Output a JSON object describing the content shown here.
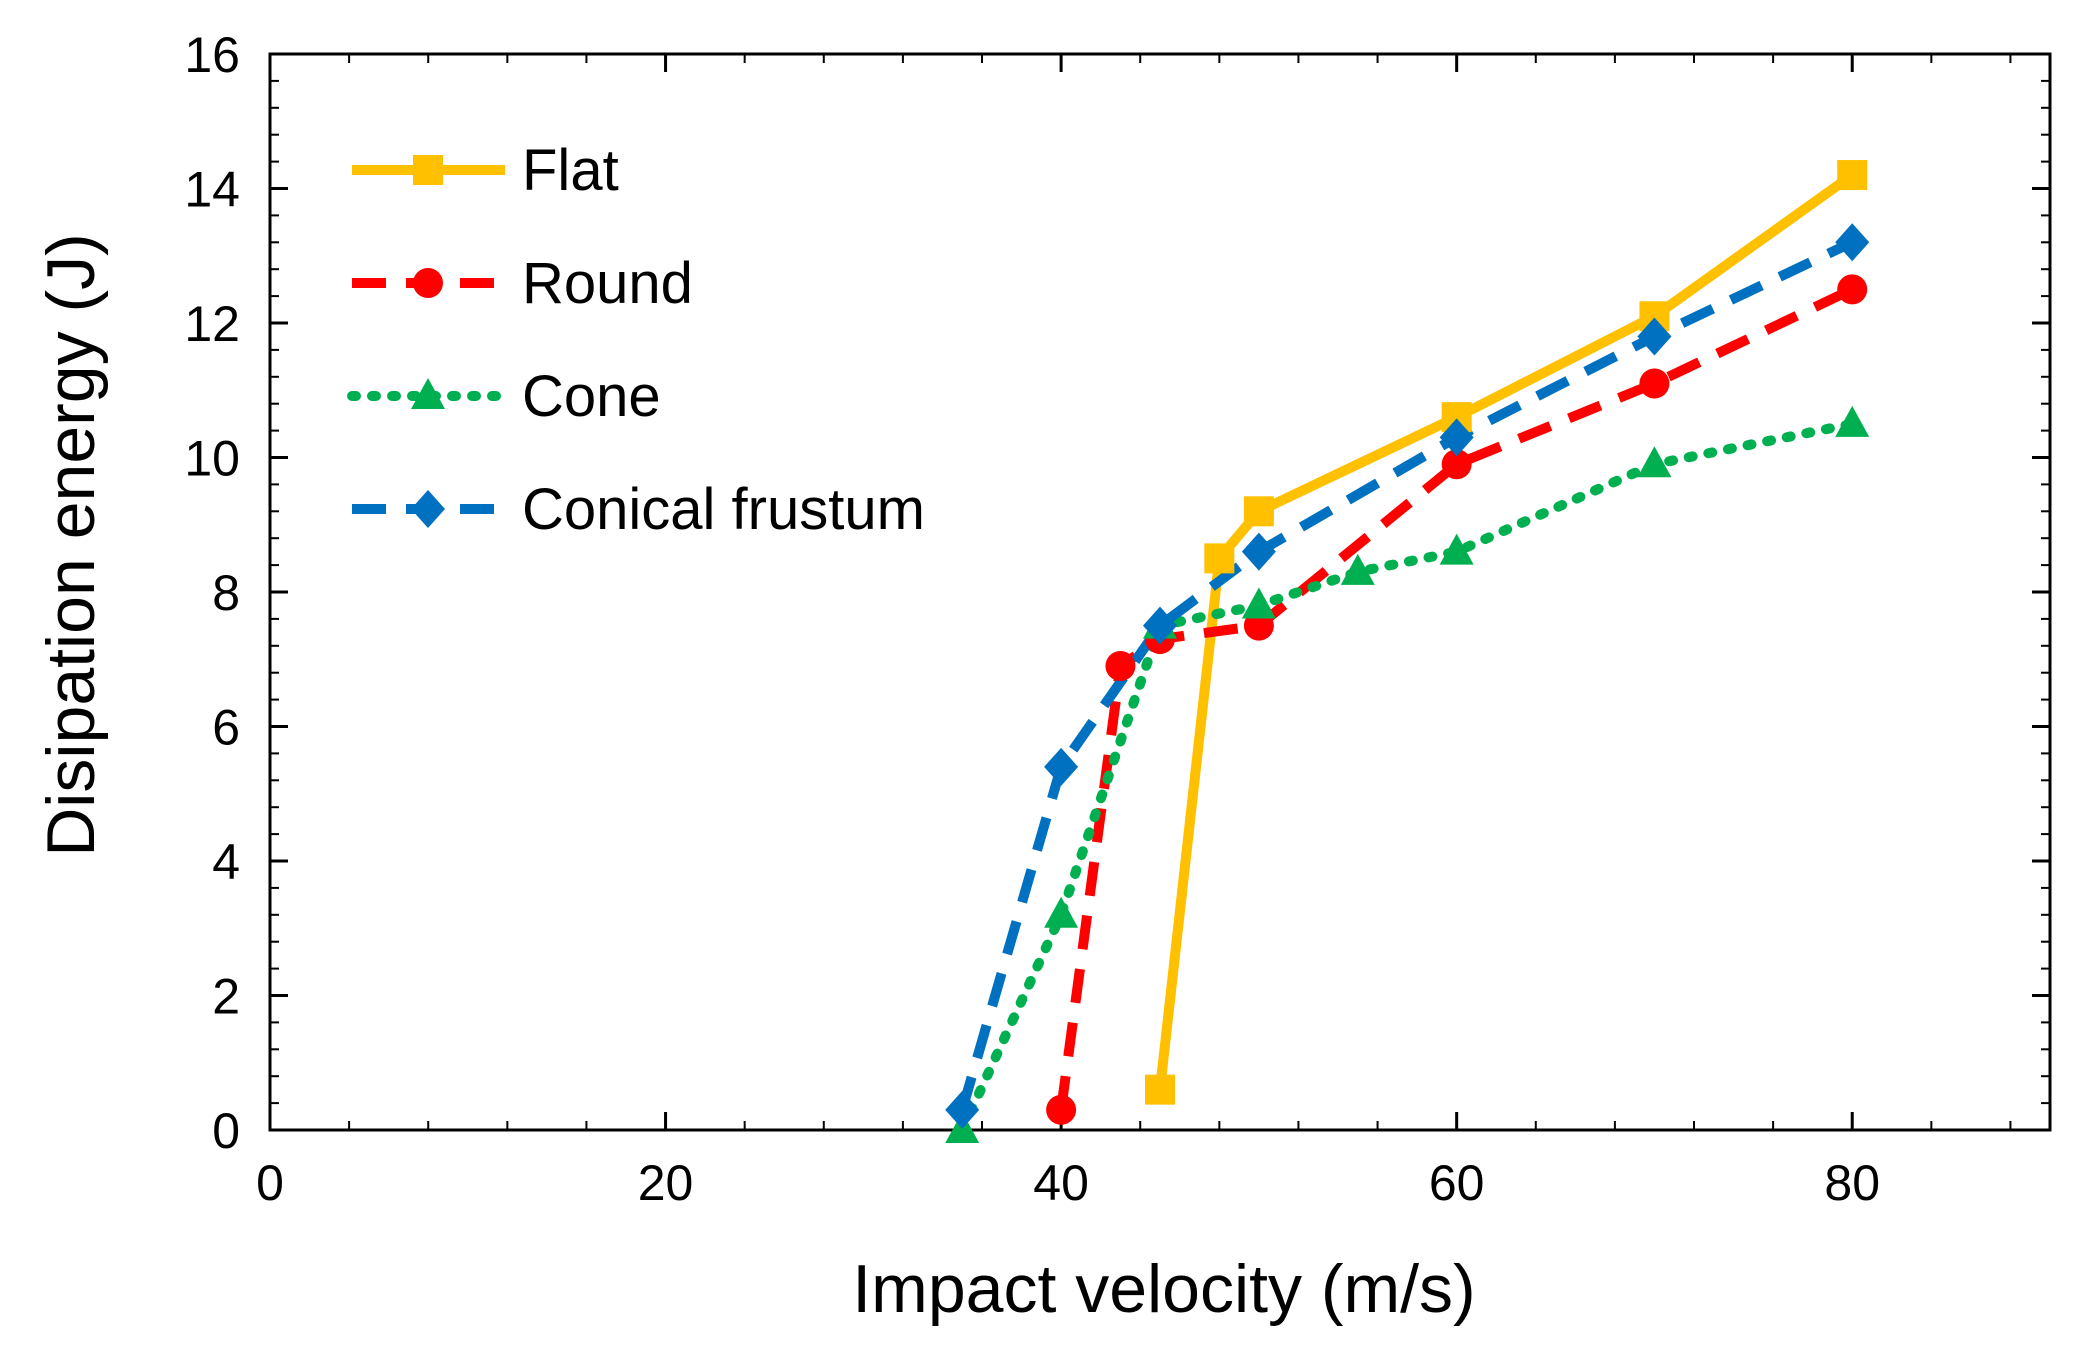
{
  "chart_data": {
    "type": "line",
    "title": "",
    "xlabel": "Impact velocity (m/s)",
    "ylabel": "Disipation energy (J)",
    "xlim": [
      0,
      90
    ],
    "ylim": [
      0,
      16
    ],
    "x_ticks": [
      0,
      20,
      40,
      60,
      80
    ],
    "y_ticks": [
      0,
      2,
      4,
      6,
      8,
      10,
      12,
      14,
      16
    ],
    "x_tick_labels": [
      "0",
      "20",
      "40",
      "60",
      "80"
    ],
    "y_tick_labels": [
      "0",
      "2",
      "4",
      "6",
      "8",
      "10",
      "12",
      "14",
      "16"
    ],
    "grid": false,
    "legend_position": "top-left",
    "series": [
      {
        "name": "Flat",
        "color": "#FFC000",
        "style": "solid",
        "marker": "square",
        "x": [
          45,
          48,
          50,
          60,
          70,
          80
        ],
        "y": [
          0.6,
          8.5,
          9.2,
          10.6,
          12.1,
          14.2
        ]
      },
      {
        "name": "Round",
        "color": "#FF0000",
        "style": "dashed",
        "marker": "circle",
        "x": [
          40,
          43,
          45,
          50,
          60,
          70,
          80
        ],
        "y": [
          0.3,
          6.9,
          7.3,
          7.5,
          9.9,
          11.1,
          12.5
        ]
      },
      {
        "name": "Cone",
        "color": "#00B050",
        "style": "dotted",
        "marker": "triangle",
        "x": [
          35,
          40,
          45,
          50,
          55,
          60,
          70,
          80
        ],
        "y": [
          0.0,
          3.2,
          7.5,
          7.8,
          8.3,
          8.6,
          9.9,
          10.5
        ]
      },
      {
        "name": "Conical frustum",
        "color": "#0070C0",
        "style": "dashed",
        "marker": "diamond",
        "x": [
          35,
          40,
          45,
          50,
          60,
          70,
          80
        ],
        "y": [
          0.3,
          5.4,
          7.5,
          8.6,
          10.3,
          11.8,
          13.2
        ]
      }
    ]
  }
}
